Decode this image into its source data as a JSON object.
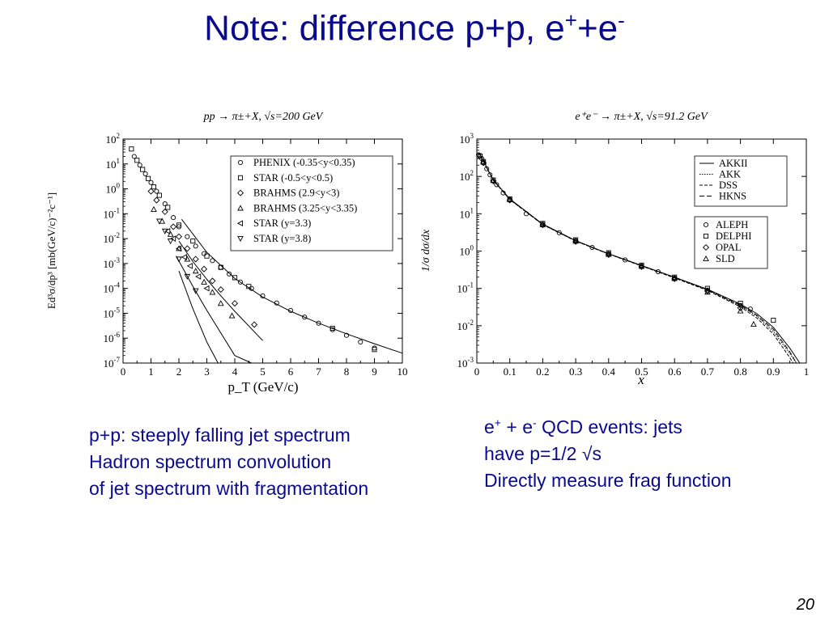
{
  "slide": {
    "title_main": "Note: difference p+p, e",
    "title_sup1": "+",
    "title_plus": "+e",
    "title_sup2": "-",
    "page_number": "20"
  },
  "text_left": {
    "line1": "p+p: steeply falling jet spectrum",
    "line2": "Hadron spectrum convolution",
    "line3": "of jet spectrum with fragmentation"
  },
  "text_right": {
    "line1_a": "e",
    "line1_sup1": "+",
    "line1_b": " + e",
    "line1_sup2": "-",
    "line1_c": " QCD events: jets",
    "line2": "have p=1/2 √s",
    "line3": "Directly measure frag function"
  },
  "chart_data": [
    {
      "type": "scatter",
      "title": "pp → π±+X, √s=200 GeV",
      "xlabel": "p_T (GeV/c)",
      "ylabel": "Ed³σ/dp³ [mb(GeV/c)⁻²c⁻¹]",
      "xlim": [
        0,
        10
      ],
      "ylim": [
        1e-07,
        100
      ],
      "yscale": "log",
      "x_ticks": [
        "0",
        "1",
        "2",
        "3",
        "4",
        "5",
        "6",
        "7",
        "8",
        "9",
        "10"
      ],
      "y_ticks": [
        "10^2",
        "10^1",
        "10^0",
        "10^-1",
        "10^-2",
        "10^-3",
        "10^-4",
        "10^-5",
        "10^-6",
        "10^-7"
      ],
      "legend_position": "top-right",
      "series": [
        {
          "name": "PHENIX (-0.35<y<0.35)",
          "marker": "circle",
          "x": [
            0.4,
            0.6,
            0.8,
            1.0,
            1.2,
            1.5,
            1.8,
            2.0,
            2.3,
            2.6,
            2.9,
            3.2,
            3.5,
            3.8,
            4.2,
            4.6,
            5.0,
            5.5,
            6.0,
            6.5,
            7.0,
            7.5,
            8.0,
            8.5,
            9.0
          ],
          "y": [
            20,
            9,
            4,
            1.8,
            0.8,
            0.25,
            0.07,
            0.03,
            0.012,
            0.005,
            0.0025,
            0.0013,
            0.0007,
            0.00038,
            0.00018,
            0.0001,
            5e-05,
            2.6e-05,
            1.3e-05,
            7e-06,
            4e-06,
            2.2e-06,
            1.3e-06,
            7e-07,
            4e-07
          ]
        },
        {
          "name": "STAR (-0.5<y<0.5)",
          "marker": "square",
          "x": [
            0.3,
            0.5,
            0.7,
            0.9,
            1.1,
            1.3,
            1.6,
            2.0,
            2.5,
            3.0,
            3.5,
            4.0,
            4.5,
            7.5,
            9.0
          ],
          "y": [
            40,
            14,
            6,
            2.6,
            1.2,
            0.55,
            0.18,
            0.035,
            0.008,
            0.002,
            0.0007,
            0.00027,
            0.00012,
            2.5e-06,
            3.5e-07
          ]
        },
        {
          "name": "BRAHMS (2.9<y<3)",
          "marker": "diamond",
          "x": [
            1.0,
            1.2,
            1.5,
            1.8,
            2.0,
            2.3,
            2.6,
            2.9,
            3.2,
            3.5,
            4.0,
            4.7
          ],
          "y": [
            0.8,
            0.35,
            0.12,
            0.03,
            0.012,
            0.004,
            0.0015,
            0.0006,
            0.0002,
            9e-05,
            2.5e-05,
            3.5e-06
          ]
        },
        {
          "name": "BRAHMS (3.25<y<3.35)",
          "marker": "triangle-up",
          "x": [
            1.1,
            1.4,
            1.7,
            2.0,
            2.3,
            2.6,
            2.9,
            3.2,
            3.5,
            3.9
          ],
          "y": [
            0.15,
            0.05,
            0.015,
            0.004,
            0.0015,
            0.0005,
            0.00018,
            7e-05,
            2.5e-05,
            8e-06
          ]
        },
        {
          "name": "STAR (y=3.3)",
          "marker": "triangle-left",
          "x": [
            1.6,
            1.8,
            2.0,
            2.2,
            2.4,
            2.7,
            3.0
          ],
          "y": [
            0.02,
            0.01,
            0.004,
            0.0018,
            0.0008,
            0.0003,
            0.0001
          ]
        },
        {
          "name": "STAR (y=3.8)",
          "marker": "triangle-down",
          "x": [
            1.3,
            1.5,
            1.7,
            2.0,
            2.3,
            2.6
          ],
          "y": [
            0.05,
            0.02,
            0.008,
            0.0015,
            0.0003,
            8e-05
          ]
        }
      ],
      "curves": [
        {
          "x": [
            2.1,
            3,
            4,
            5,
            6,
            7,
            8,
            9,
            10
          ],
          "y": [
            0.06,
            0.0028,
            0.00025,
            4.5e-05,
            1.2e-05,
            4e-06,
            1.5e-06,
            6e-07,
            2.5e-07
          ]
        },
        {
          "x": [
            2.0,
            2.5,
            3.0,
            3.5,
            4.0,
            5.0
          ],
          "y": [
            0.008,
            0.0012,
            0.00023,
            5e-05,
            1.2e-05,
            8e-07
          ]
        },
        {
          "x": [
            1.9,
            2.5,
            3.0,
            3.5,
            4.0,
            4.6
          ],
          "y": [
            0.002,
            0.00012,
            1.3e-05,
            1.6e-06,
            2e-07,
            1e-07
          ]
        },
        {
          "x": [
            2.0,
            2.5,
            3.0,
            3.4
          ],
          "y": [
            0.0005,
            1.5e-05,
            7e-07,
            1e-07
          ]
        }
      ]
    },
    {
      "type": "scatter",
      "title": "e⁺e⁻ → π±+X, √s=91.2 GeV",
      "xlabel": "x",
      "ylabel": "1/σ dσ/dx",
      "xlim": [
        0,
        1
      ],
      "ylim": [
        0.001,
        1000
      ],
      "yscale": "log",
      "x_ticks": [
        "0",
        "0.1",
        "0.2",
        "0.3",
        "0.4",
        "0.5",
        "0.6",
        "0.7",
        "0.8",
        "0.9",
        "1"
      ],
      "y_ticks": [
        "10^3",
        "10^2",
        "10^1",
        "10^0",
        "10^-1",
        "10^-2",
        "10^-3"
      ],
      "legend_position": "top-right",
      "legend_lines": [
        "AKKII",
        "AKK",
        "DSS",
        "HKNS"
      ],
      "series": [
        {
          "name": "ALEPH",
          "marker": "circle",
          "x": [
            0.005,
            0.01,
            0.015,
            0.02,
            0.03,
            0.04,
            0.06,
            0.08,
            0.1,
            0.15,
            0.2,
            0.25,
            0.3,
            0.35,
            0.4,
            0.45,
            0.5,
            0.55,
            0.6,
            0.7,
            0.8,
            0.83
          ],
          "y": [
            380,
            360,
            300,
            240,
            160,
            110,
            60,
            36,
            24,
            10,
            5.2,
            3.1,
            1.9,
            1.25,
            0.85,
            0.58,
            0.4,
            0.28,
            0.19,
            0.09,
            0.035,
            0.028
          ]
        },
        {
          "name": "DELPHI",
          "marker": "square",
          "x": [
            0.01,
            0.02,
            0.05,
            0.1,
            0.2,
            0.3,
            0.4,
            0.5,
            0.6,
            0.7,
            0.8,
            0.9
          ],
          "y": [
            350,
            250,
            80,
            25,
            5.5,
            2.0,
            0.9,
            0.42,
            0.2,
            0.1,
            0.04,
            0.014
          ]
        },
        {
          "name": "OPAL",
          "marker": "diamond",
          "x": [
            0.02,
            0.05,
            0.1,
            0.2,
            0.3,
            0.4,
            0.5,
            0.6,
            0.7,
            0.8
          ],
          "y": [
            230,
            75,
            23,
            5.0,
            1.8,
            0.8,
            0.38,
            0.18,
            0.085,
            0.03
          ]
        },
        {
          "name": "SLD",
          "marker": "triangle-up",
          "x": [
            0.02,
            0.05,
            0.1,
            0.2,
            0.3,
            0.4,
            0.5,
            0.6,
            0.7,
            0.8,
            0.84
          ],
          "y": [
            240,
            78,
            24,
            5.1,
            1.85,
            0.82,
            0.39,
            0.185,
            0.08,
            0.025,
            0.011
          ]
        }
      ],
      "curves": [
        {
          "name": "AKKII",
          "x": [
            0.005,
            0.01,
            0.02,
            0.05,
            0.1,
            0.2,
            0.3,
            0.4,
            0.5,
            0.6,
            0.7,
            0.8,
            0.85,
            0.9,
            0.95,
            0.98
          ],
          "y": [
            420,
            380,
            260,
            80,
            25,
            5.3,
            1.9,
            0.85,
            0.41,
            0.2,
            0.095,
            0.038,
            0.021,
            0.009,
            0.0025,
            0.001
          ]
        },
        {
          "name": "AKK",
          "x": [
            0.005,
            0.01,
            0.02,
            0.05,
            0.1,
            0.2,
            0.3,
            0.4,
            0.5,
            0.6,
            0.7,
            0.8,
            0.85,
            0.9,
            0.95,
            0.97
          ],
          "y": [
            420,
            375,
            255,
            79,
            24.5,
            5.2,
            1.88,
            0.84,
            0.4,
            0.195,
            0.09,
            0.034,
            0.018,
            0.007,
            0.0018,
            0.001
          ]
        },
        {
          "name": "DSS",
          "x": [
            0.005,
            0.01,
            0.02,
            0.05,
            0.1,
            0.2,
            0.3,
            0.4,
            0.5,
            0.6,
            0.7,
            0.8,
            0.85,
            0.9,
            0.95,
            0.96
          ],
          "y": [
            410,
            370,
            250,
            78,
            24,
            5.1,
            1.85,
            0.83,
            0.4,
            0.19,
            0.088,
            0.032,
            0.016,
            0.006,
            0.0014,
            0.001
          ]
        },
        {
          "name": "HKNS",
          "x": [
            0.005,
            0.01,
            0.02,
            0.05,
            0.1,
            0.2,
            0.3,
            0.4,
            0.5,
            0.6,
            0.7,
            0.8,
            0.85,
            0.9,
            0.95,
            0.97
          ],
          "y": [
            415,
            372,
            252,
            78.5,
            24.2,
            5.15,
            1.87,
            0.84,
            0.41,
            0.2,
            0.092,
            0.036,
            0.019,
            0.008,
            0.002,
            0.001
          ]
        }
      ]
    }
  ]
}
